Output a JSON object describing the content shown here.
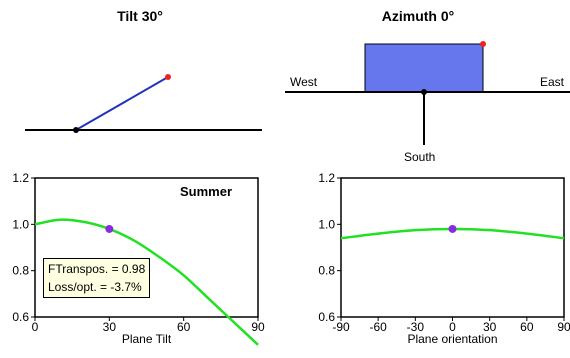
{
  "tilt_panel": {
    "title": "Tilt 30°",
    "tilt_degrees": 30
  },
  "azimuth_panel": {
    "title": "Azimuth 0°",
    "azimuth_degrees": 0,
    "west_label": "West",
    "east_label": "East",
    "south_label": "South"
  },
  "info_box": {
    "ftranspos": "FTranspos. = 0.98",
    "loss": "Loss/opt. = -3.7%"
  },
  "colors": {
    "curve": "#22e022",
    "marker": "#8a2be2",
    "panel_fill": "#6677ee",
    "tilt_line": "#2233bb",
    "red_dot": "#ee2222"
  },
  "chart_data": [
    {
      "type": "line",
      "season": "Summer",
      "xlabel": "Plane Tilt",
      "ylabel": "",
      "xlim": [
        0,
        90
      ],
      "ylim": [
        0.6,
        1.2
      ],
      "x_ticks": [
        "0",
        "30",
        "60",
        "90"
      ],
      "y_ticks": [
        "0.6",
        "0.8",
        "1.0",
        "1.2"
      ],
      "x": [
        0,
        10,
        20,
        30,
        40,
        50,
        60,
        70,
        80,
        90
      ],
      "y": [
        1.0,
        1.02,
        1.01,
        0.98,
        0.93,
        0.86,
        0.78,
        0.68,
        0.58,
        0.48
      ],
      "marker": {
        "x": 30,
        "y": 0.98
      }
    },
    {
      "type": "line",
      "xlabel": "Plane orientation",
      "ylabel": "",
      "xlim": [
        -90,
        90
      ],
      "ylim": [
        0.6,
        1.2
      ],
      "x_ticks": [
        "-90",
        "-60",
        "-30",
        "0",
        "30",
        "60",
        "90"
      ],
      "y_ticks": [
        "0.6",
        "0.8",
        "1.0",
        "1.2"
      ],
      "x": [
        -90,
        -60,
        -30,
        0,
        30,
        60,
        90
      ],
      "y": [
        0.94,
        0.96,
        0.975,
        0.98,
        0.975,
        0.96,
        0.94
      ],
      "marker": {
        "x": 0,
        "y": 0.98
      }
    }
  ]
}
